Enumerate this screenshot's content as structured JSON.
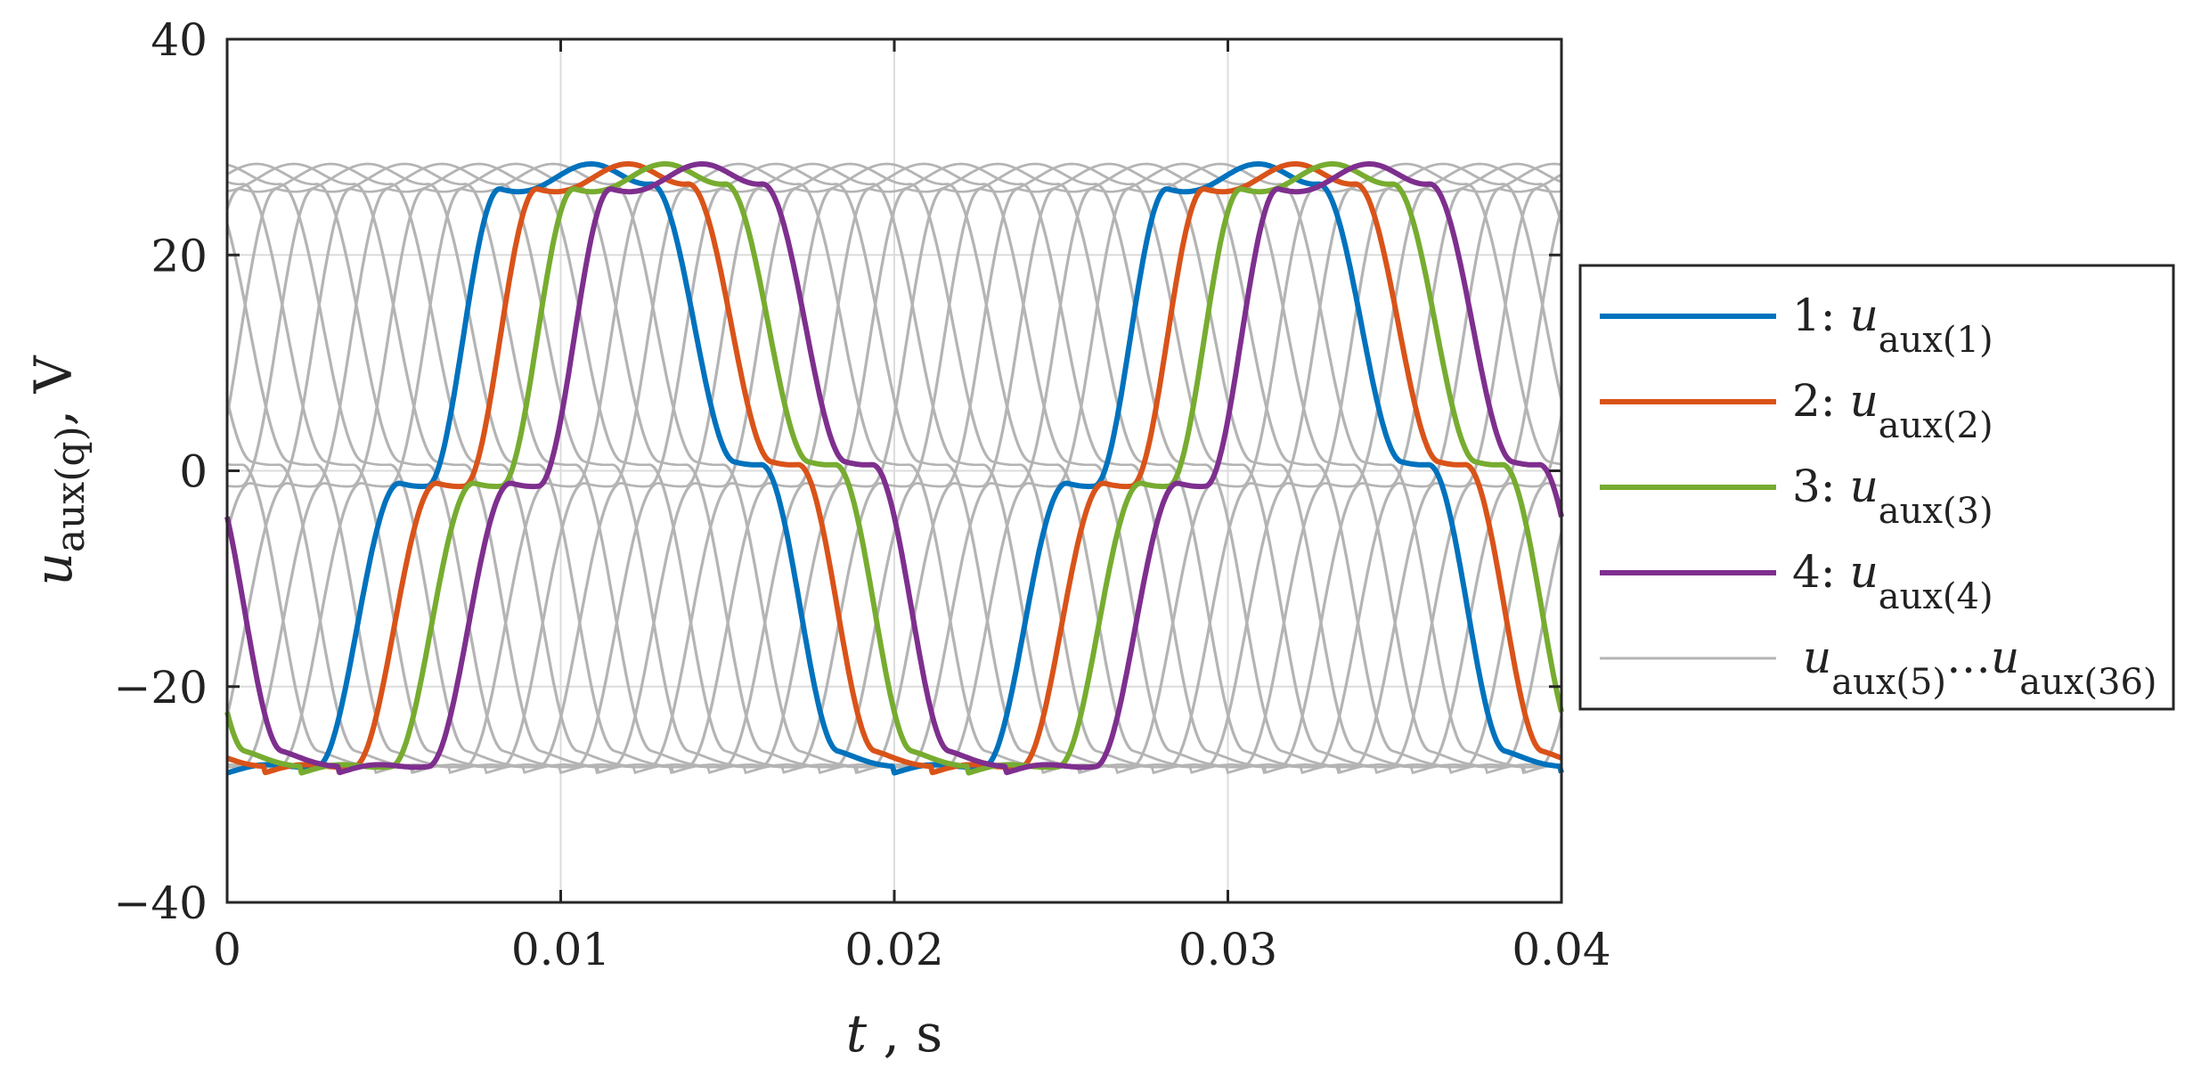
{
  "chart_data": {
    "type": "line",
    "xlabel": {
      "var": "t",
      "sep": " , ",
      "unit": "s"
    },
    "ylabel": {
      "var": "u",
      "sub": "aux(q)",
      "unit": ", V"
    },
    "xlim": [
      0,
      0.04
    ],
    "ylim": [
      -40,
      40
    ],
    "xticks": [
      0,
      0.01,
      0.02,
      0.03,
      0.04
    ],
    "xtick_labels": [
      "0",
      "0.01",
      "0.02",
      "0.03",
      "0.04"
    ],
    "yticks": [
      -40,
      -20,
      0,
      20,
      40
    ],
    "ytick_labels": [
      "−40",
      "−20",
      "0",
      "20",
      "40"
    ],
    "grid": true,
    "legend_position": "outside-right",
    "period_s": 0.02,
    "amplitude_V": 28,
    "series": [
      {
        "name": "1:",
        "legend_var": "u",
        "legend_sub": "aux(1)",
        "color": "#0072BD",
        "phase_shift_s": 0.0,
        "highlighted": true
      },
      {
        "name": "2:",
        "legend_var": "u",
        "legend_sub": "aux(2)",
        "color": "#D95319",
        "phase_shift_s": 0.00111,
        "highlighted": true
      },
      {
        "name": "3:",
        "legend_var": "u",
        "legend_sub": "aux(3)",
        "color": "#77AC30",
        "phase_shift_s": 0.00222,
        "highlighted": true
      },
      {
        "name": "4:",
        "legend_var": "u",
        "legend_sub": "aux(4)",
        "color": "#7E2F8E",
        "phase_shift_s": 0.00333,
        "highlighted": true
      },
      {
        "name": "",
        "legend_var": "u",
        "legend_sub": "aux(5)",
        "legend_ellipsis": "…",
        "legend_var2": "u",
        "legend_sub2": "aux(36)",
        "color": "#B4B4B4",
        "count": 32,
        "phase_shift_start_s": 0.00444,
        "phase_shift_step_s": 0.00111,
        "highlighted": false
      }
    ],
    "key_points_series1": [
      {
        "t": 0.0,
        "u": -28
      },
      {
        "t": 0.0027,
        "u": -27
      },
      {
        "t": 0.0052,
        "u": -1
      },
      {
        "t": 0.006,
        "u": -1
      },
      {
        "t": 0.0082,
        "u": 26
      },
      {
        "t": 0.011,
        "u": 28
      },
      {
        "t": 0.0127,
        "u": 27
      },
      {
        "t": 0.0152,
        "u": 1
      },
      {
        "t": 0.016,
        "u": 1
      },
      {
        "t": 0.0183,
        "u": -26
      },
      {
        "t": 0.021,
        "u": -28
      }
    ]
  }
}
